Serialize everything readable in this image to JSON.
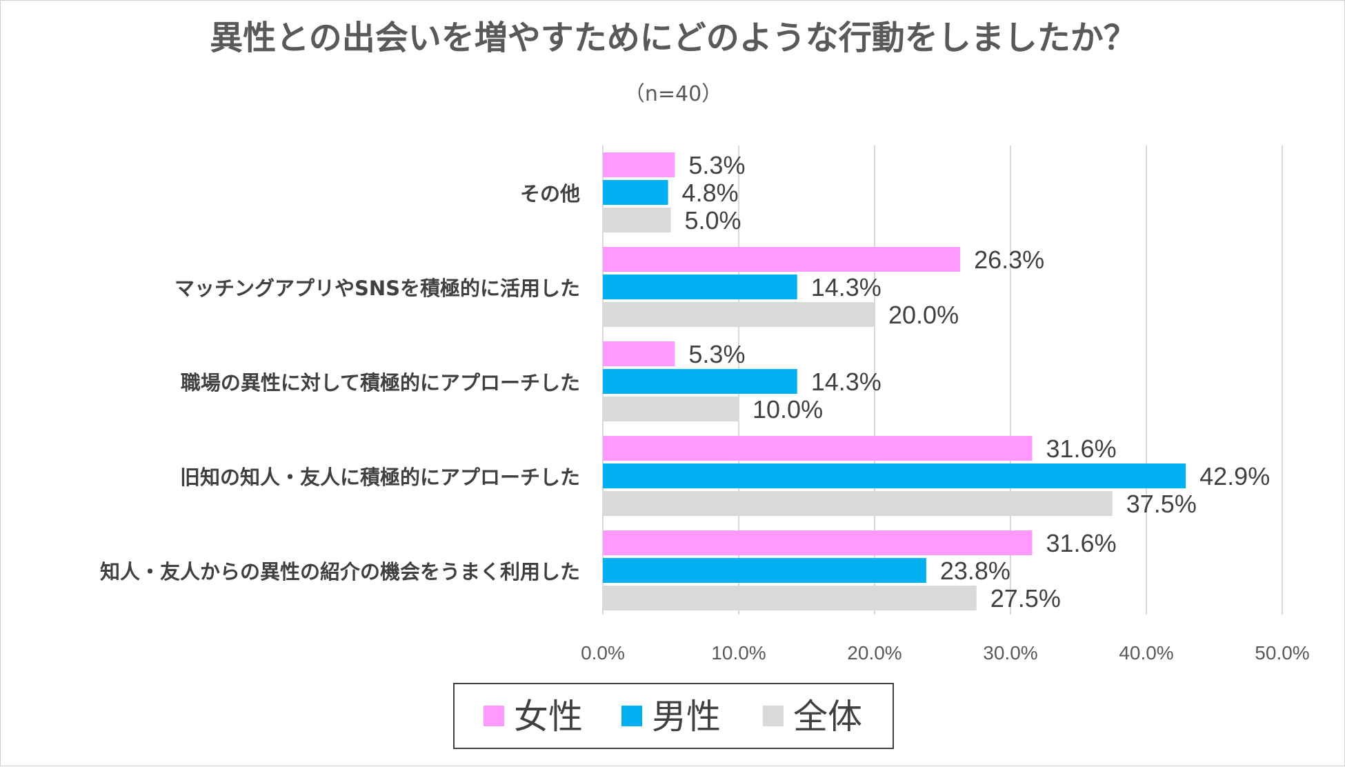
{
  "chart_data": {
    "type": "bar",
    "orientation": "horizontal",
    "title": "異性との出会いを増やすためにどのような行動をしましたか？",
    "subtitle": "（n=40）",
    "categories": [
      "その他",
      "マッチングアプリやSNSを積極的に活用した",
      "職場の異性に対して積極的にアプローチした",
      "旧知の知人・友人に積極的にアプローチした",
      "知人・友人からの異性の紹介の機会をうまく利用した"
    ],
    "series": [
      {
        "name": "女性",
        "color": "#FF99FF",
        "values": [
          5.3,
          26.3,
          5.3,
          31.6,
          31.6
        ]
      },
      {
        "name": "男性",
        "color": "#00B0F0",
        "values": [
          4.8,
          14.3,
          14.3,
          42.9,
          23.8
        ]
      },
      {
        "name": "全体",
        "color": "#D9D9D9",
        "values": [
          5.0,
          20.0,
          10.0,
          37.5,
          27.5
        ]
      }
    ],
    "xlim": [
      0,
      50
    ],
    "xticks": [
      0,
      10,
      20,
      30,
      40,
      50
    ],
    "tick_labels": [
      "0.0%",
      "10.0%",
      "20.0%",
      "30.0%",
      "40.0%",
      "50.0%"
    ],
    "value_suffix": "%",
    "grid": true,
    "legend_position": "bottom"
  }
}
